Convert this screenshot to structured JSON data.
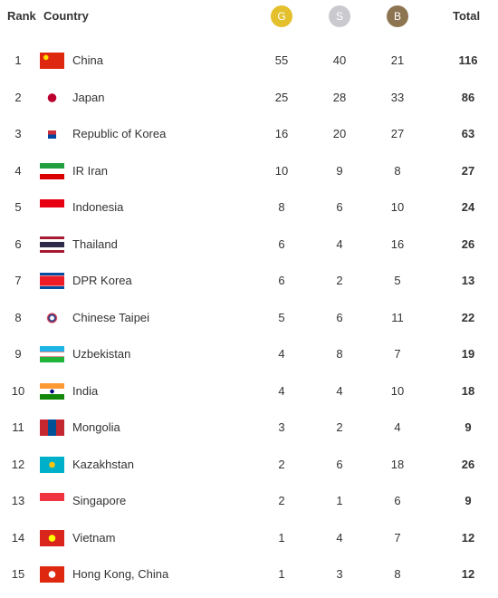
{
  "header": {
    "rank": "Rank",
    "country": "Country",
    "gold": "G",
    "silver": "S",
    "bronze": "B",
    "total": "Total"
  },
  "table": {
    "rows": [
      [
        "1",
        "China",
        "55",
        "40",
        "21",
        "116"
      ],
      [
        "2",
        "Japan",
        "25",
        "28",
        "33",
        "86"
      ],
      [
        "3",
        "Republic of Korea",
        "16",
        "20",
        "27",
        "63"
      ],
      [
        "4",
        "IR Iran",
        "10",
        "9",
        "8",
        "27"
      ],
      [
        "5",
        "Indonesia",
        "8",
        "6",
        "10",
        "24"
      ],
      [
        "6",
        "Thailand",
        "6",
        "4",
        "16",
        "26"
      ],
      [
        "7",
        "DPR Korea",
        "6",
        "2",
        "5",
        "13"
      ],
      [
        "8",
        "Chinese Taipei",
        "5",
        "6",
        "11",
        "22"
      ],
      [
        "9",
        "Uzbekistan",
        "4",
        "8",
        "7",
        "19"
      ],
      [
        "10",
        "India",
        "4",
        "4",
        "10",
        "18"
      ],
      [
        "11",
        "Mongolia",
        "3",
        "2",
        "4",
        "9"
      ],
      [
        "12",
        "Kazakhstan",
        "2",
        "6",
        "18",
        "26"
      ],
      [
        "13",
        "Singapore",
        "2",
        "1",
        "6",
        "9"
      ],
      [
        "14",
        "Vietnam",
        "1",
        "4",
        "7",
        "12"
      ],
      [
        "15",
        "Hong Kong, China",
        "1",
        "3",
        "8",
        "12"
      ]
    ]
  }
}
